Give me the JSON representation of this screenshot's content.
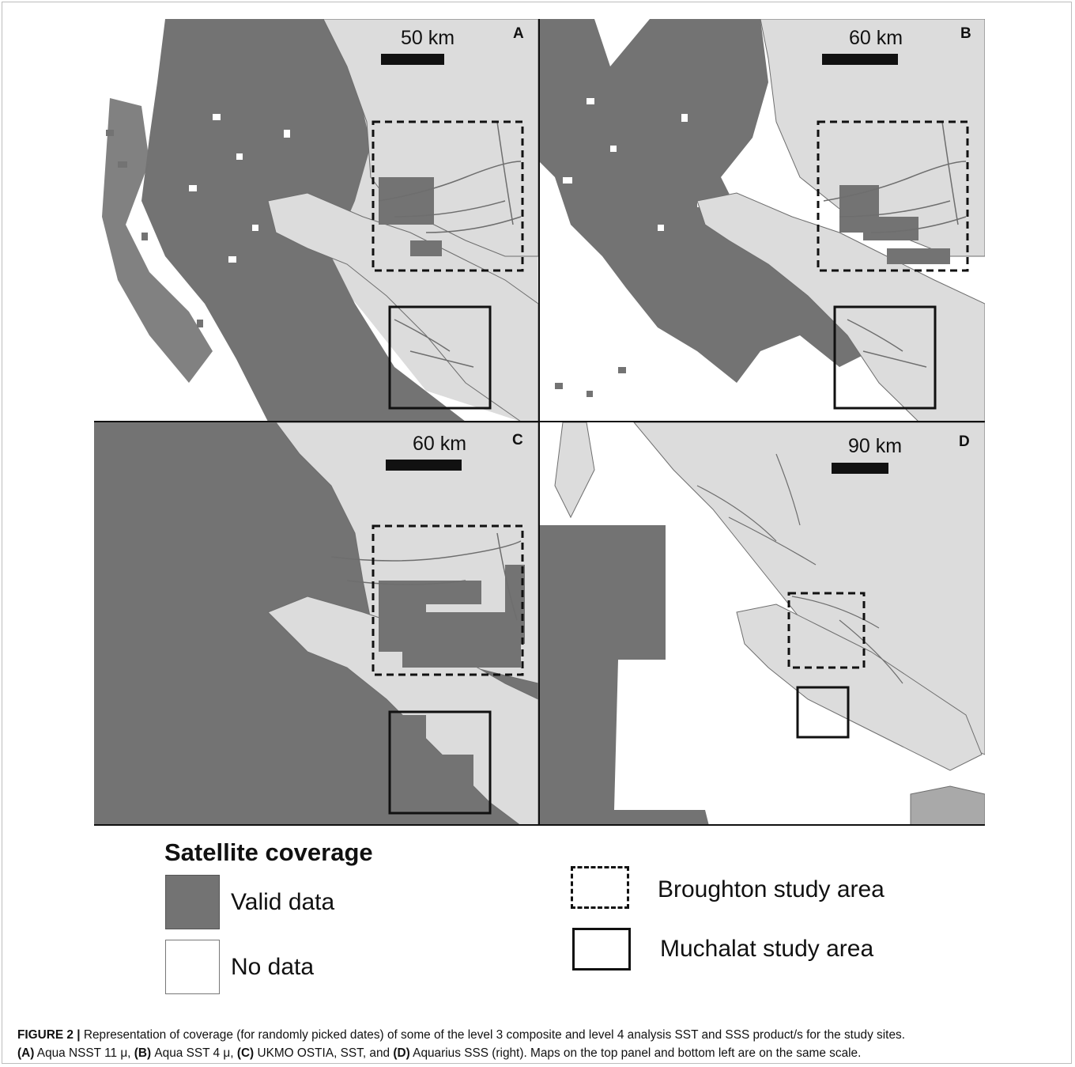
{
  "colors": {
    "valid_data": "#737373",
    "no_data": "#ffffff",
    "land": "#dcdcdc",
    "coast": "#6e6e6e",
    "us_land": "#a9a9a9"
  },
  "panels": [
    {
      "letter": "A",
      "scale": "50 km"
    },
    {
      "letter": "B",
      "scale": "60 km"
    },
    {
      "letter": "C",
      "scale": "60 km"
    },
    {
      "letter": "D",
      "scale": "90 km"
    }
  ],
  "legend": {
    "title": "Satellite coverage",
    "valid_label": "Valid data",
    "nodata_label": "No data",
    "broughton_label": "Broughton study area",
    "muchalat_label": "Muchalat study area"
  },
  "caption": {
    "figure_label": "FIGURE 2 |",
    "line1": " Representation of coverage (for randomly picked dates) of some of the level 3 composite and level 4 analysis SST and SSS product/s for the study sites.",
    "a_label": "(A)",
    "a_text": " Aqua NSST 11 μ, ",
    "b_label": "(B)",
    "b_text": " Aqua SST 4 μ, ",
    "c_label": "(C)",
    "c_text": " UKMO OSTIA, SST, and ",
    "d_label": "(D)",
    "d_text": " Aquarius SSS (right). Maps on the top panel and bottom left are on the same scale."
  }
}
